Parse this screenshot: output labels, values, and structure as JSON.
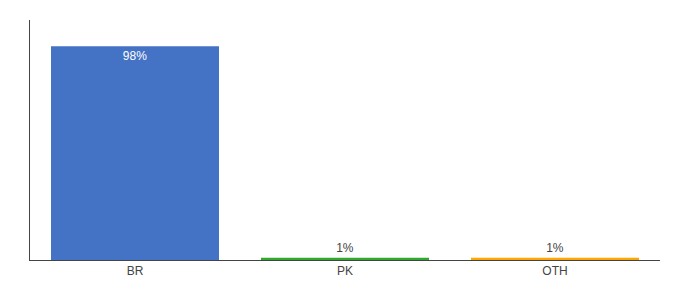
{
  "chart_data": {
    "type": "bar",
    "categories": [
      "BR",
      "PK",
      "OTH"
    ],
    "values": [
      98,
      1,
      1
    ],
    "value_labels": [
      "98%",
      "1%",
      "1%"
    ],
    "colors": [
      "#4472C4",
      "#2EAA2E",
      "#FFA500"
    ],
    "ylim": [
      0,
      110
    ],
    "grid": false,
    "data_labels": true,
    "tick_labels": "x"
  }
}
